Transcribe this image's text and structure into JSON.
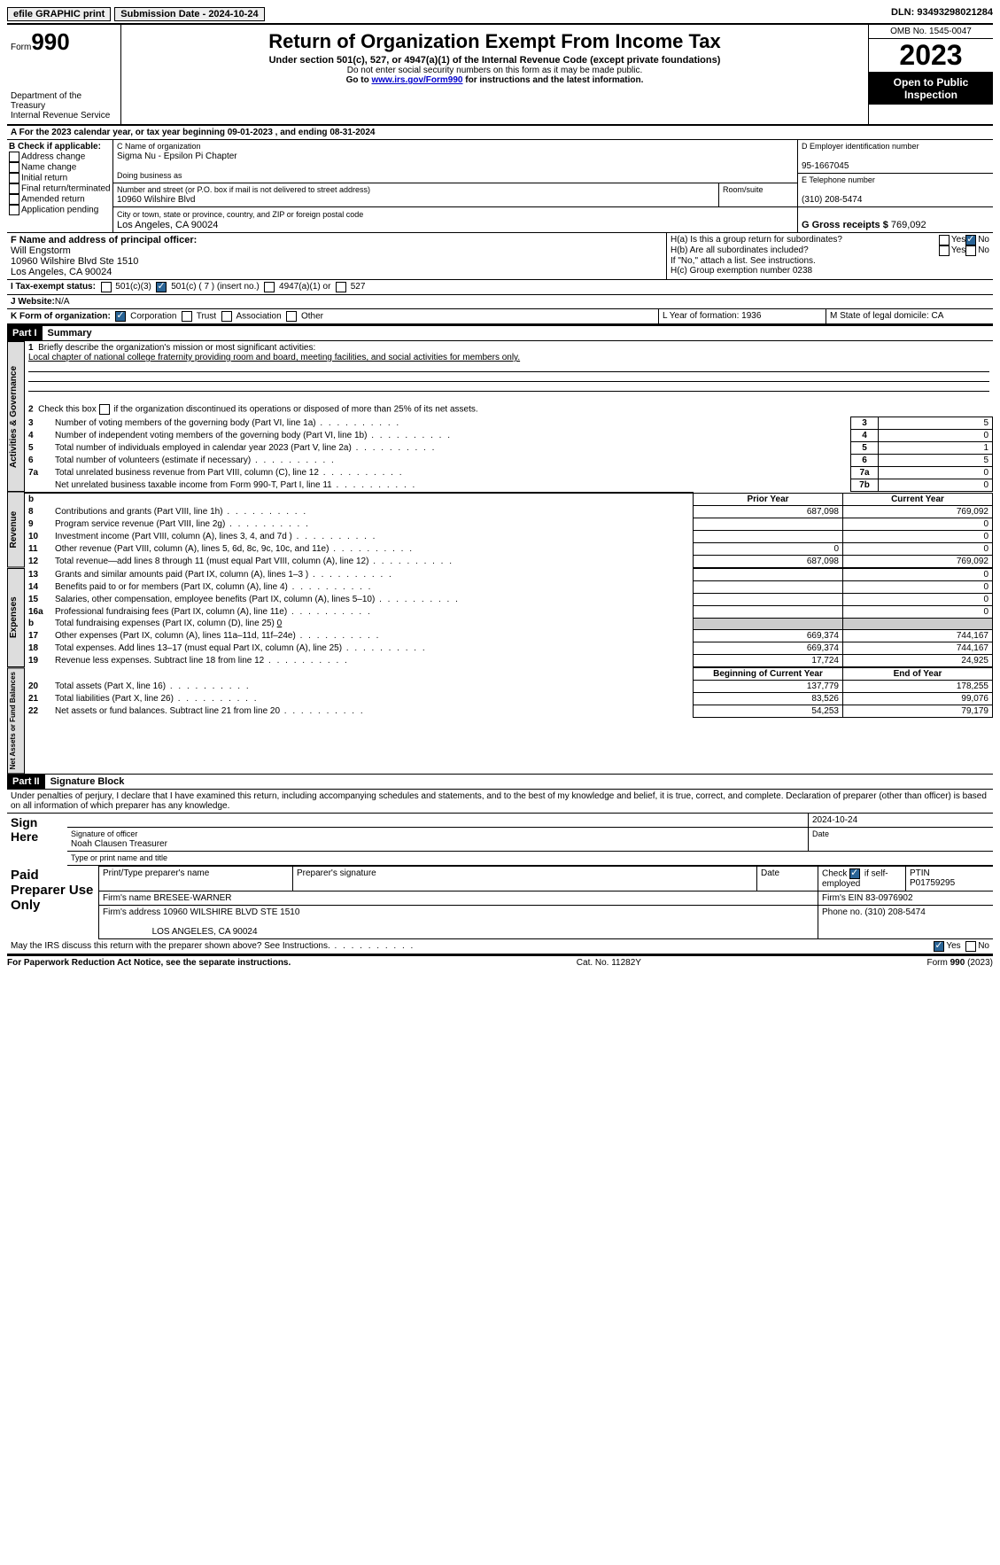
{
  "topbar": {
    "efile": "efile GRAPHIC print",
    "submission": "Submission Date - 2024-10-24",
    "dln": "DLN: 93493298021284"
  },
  "header": {
    "form_word": "Form",
    "form_num": "990",
    "title": "Return of Organization Exempt From Income Tax",
    "subtitle": "Under section 501(c), 527, or 4947(a)(1) of the Internal Revenue Code (except private foundations)",
    "note1": "Do not enter social security numbers on this form as it may be made public.",
    "note2_pre": "Go to ",
    "note2_link": "www.irs.gov/Form990",
    "note2_post": " for instructions and the latest information.",
    "dept": "Department of the Treasury",
    "irs": "Internal Revenue Service",
    "omb": "OMB No. 1545-0047",
    "year": "2023",
    "open": "Open to Public Inspection"
  },
  "line_a": "A For the 2023 calendar year, or tax year beginning 09-01-2023   , and ending 08-31-2024",
  "box_b": {
    "title": "B Check if applicable:",
    "items": [
      "Address change",
      "Name change",
      "Initial return",
      "Final return/terminated",
      "Amended return",
      "Application pending"
    ]
  },
  "box_c": {
    "name_lbl": "C Name of organization",
    "name": "Sigma Nu - Epsilon Pi Chapter",
    "dba_lbl": "Doing business as",
    "street_lbl": "Number and street (or P.O. box if mail is not delivered to street address)",
    "street": "10960 Wilshire Blvd",
    "room_lbl": "Room/suite",
    "city_lbl": "City or town, state or province, country, and ZIP or foreign postal code",
    "city": "Los Angeles, CA  90024"
  },
  "box_d": {
    "ein_lbl": "D Employer identification number",
    "ein": "95-1667045",
    "phone_lbl": "E Telephone number",
    "phone": "(310) 208-5474",
    "gross_lbl": "G Gross receipts $ ",
    "gross": "769,092"
  },
  "box_f": {
    "lbl": "F  Name and address of principal officer:",
    "name": "Will Engstorm",
    "addr1": "10960 Wilshire Blvd Ste 1510",
    "addr2": "Los Angeles, CA  90024"
  },
  "box_h": {
    "ha": "H(a)  Is this a group return for subordinates?",
    "hb": "H(b)  Are all subordinates included?",
    "hb_note": "If \"No,\" attach a list. See instructions.",
    "hc": "H(c)  Group exemption number   ",
    "hc_val": "0238"
  },
  "tax_status": {
    "lbl": "I   Tax-exempt status:",
    "o1": "501(c)(3)",
    "o2": "501(c) ( 7 ) (insert no.)",
    "o3": "4947(a)(1) or",
    "o4": "527"
  },
  "website": {
    "lbl": "J   Website:  ",
    "val": "N/A"
  },
  "box_k": {
    "lbl": "K Form of organization:",
    "o1": "Corporation",
    "o2": "Trust",
    "o3": "Association",
    "o4": "Other"
  },
  "box_l": "L Year of formation: 1936",
  "box_m": "M State of legal domicile: CA",
  "part1": {
    "num": "Part I",
    "title": "Summary"
  },
  "summary": {
    "l1_lbl": "Briefly describe the organization's mission or most significant activities:",
    "l1_val": "Local chapter of national college fraternity providing room and board, meeting facilities, and social activities for members only.",
    "l2": "Check this box        if the organization discontinued its operations or disposed of more than 25% of its net assets.",
    "lines": [
      {
        "n": "3",
        "t": "Number of voting members of the governing body (Part VI, line 1a)",
        "c": "3",
        "v": "5"
      },
      {
        "n": "4",
        "t": "Number of independent voting members of the governing body (Part VI, line 1b)",
        "c": "4",
        "v": "0"
      },
      {
        "n": "5",
        "t": "Total number of individuals employed in calendar year 2023 (Part V, line 2a)",
        "c": "5",
        "v": "1"
      },
      {
        "n": "6",
        "t": "Total number of volunteers (estimate if necessary)",
        "c": "6",
        "v": "5"
      },
      {
        "n": "7a",
        "t": "Total unrelated business revenue from Part VIII, column (C), line 12",
        "c": "7a",
        "v": "0"
      },
      {
        "n": "",
        "t": "Net unrelated business taxable income from Form 990-T, Part I, line 11",
        "c": "7b",
        "v": "0"
      }
    ]
  },
  "revenue": {
    "h_prior": "Prior Year",
    "h_curr": "Current Year",
    "rows": [
      {
        "n": "8",
        "t": "Contributions and grants (Part VIII, line 1h)",
        "p": "687,098",
        "c": "769,092"
      },
      {
        "n": "9",
        "t": "Program service revenue (Part VIII, line 2g)",
        "p": "",
        "c": "0"
      },
      {
        "n": "10",
        "t": "Investment income (Part VIII, column (A), lines 3, 4, and 7d )",
        "p": "",
        "c": "0"
      },
      {
        "n": "11",
        "t": "Other revenue (Part VIII, column (A), lines 5, 6d, 8c, 9c, 10c, and 11e)",
        "p": "0",
        "c": "0"
      },
      {
        "n": "12",
        "t": "Total revenue—add lines 8 through 11 (must equal Part VIII, column (A), line 12)",
        "p": "687,098",
        "c": "769,092"
      }
    ]
  },
  "expenses": {
    "rows": [
      {
        "n": "13",
        "t": "Grants and similar amounts paid (Part IX, column (A), lines 1–3 )",
        "p": "",
        "c": "0"
      },
      {
        "n": "14",
        "t": "Benefits paid to or for members (Part IX, column (A), line 4)",
        "p": "",
        "c": "0"
      },
      {
        "n": "15",
        "t": "Salaries, other compensation, employee benefits (Part IX, column (A), lines 5–10)",
        "p": "",
        "c": "0"
      },
      {
        "n": "16a",
        "t": "Professional fundraising fees (Part IX, column (A), line 11e)",
        "p": "",
        "c": "0"
      }
    ],
    "l16b": "Total fundraising expenses (Part IX, column (D), line 25)",
    "l16b_val": "0",
    "rows2": [
      {
        "n": "17",
        "t": "Other expenses (Part IX, column (A), lines 11a–11d, 11f–24e)",
        "p": "669,374",
        "c": "744,167"
      },
      {
        "n": "18",
        "t": "Total expenses. Add lines 13–17 (must equal Part IX, column (A), line 25)",
        "p": "669,374",
        "c": "744,167"
      },
      {
        "n": "19",
        "t": "Revenue less expenses. Subtract line 18 from line 12",
        "p": "17,724",
        "c": "24,925"
      }
    ]
  },
  "netassets": {
    "h_begin": "Beginning of Current Year",
    "h_end": "End of Year",
    "rows": [
      {
        "n": "20",
        "t": "Total assets (Part X, line 16)",
        "p": "137,779",
        "c": "178,255"
      },
      {
        "n": "21",
        "t": "Total liabilities (Part X, line 26)",
        "p": "83,526",
        "c": "99,076"
      },
      {
        "n": "22",
        "t": "Net assets or fund balances. Subtract line 21 from line 20",
        "p": "54,253",
        "c": "79,179"
      }
    ]
  },
  "part2": {
    "num": "Part II",
    "title": "Signature Block"
  },
  "perjury": "Under penalties of perjury, I declare that I have examined this return, including accompanying schedules and statements, and to the best of my knowledge and belief, it is true, correct, and complete. Declaration of preparer (other than officer) is based on all information of which preparer has any knowledge.",
  "sign": {
    "here": "Sign Here",
    "sig_lbl": "Signature of officer",
    "officer": "Noah Clausen  Treasurer",
    "type_lbl": "Type or print name and title",
    "date_lbl": "Date",
    "date": "2024-10-24"
  },
  "preparer": {
    "title": "Paid Preparer Use Only",
    "h1": "Print/Type preparer's name",
    "h2": "Preparer's signature",
    "h3": "Date",
    "h4_pre": "Check ",
    "h4_post": " if self-employed",
    "h5": "PTIN",
    "ptin": "P01759295",
    "firm_lbl": "Firm's name    ",
    "firm": "BRESEE-WARNER",
    "ein_lbl": "Firm's EIN  ",
    "ein": "83-0976902",
    "addr_lbl": "Firm's address ",
    "addr1": "10960 WILSHIRE BLVD STE 1510",
    "addr2": "LOS ANGELES, CA  90024",
    "phone_lbl": "Phone no. ",
    "phone": "(310) 208-5474"
  },
  "discuss": "May the IRS discuss this return with the preparer shown above? See Instructions.",
  "footer": {
    "left": "For Paperwork Reduction Act Notice, see the separate instructions.",
    "mid": "Cat. No. 11282Y",
    "right_pre": "Form ",
    "right_b": "990",
    "right_post": " (2023)"
  },
  "yes": "Yes",
  "no": "No"
}
